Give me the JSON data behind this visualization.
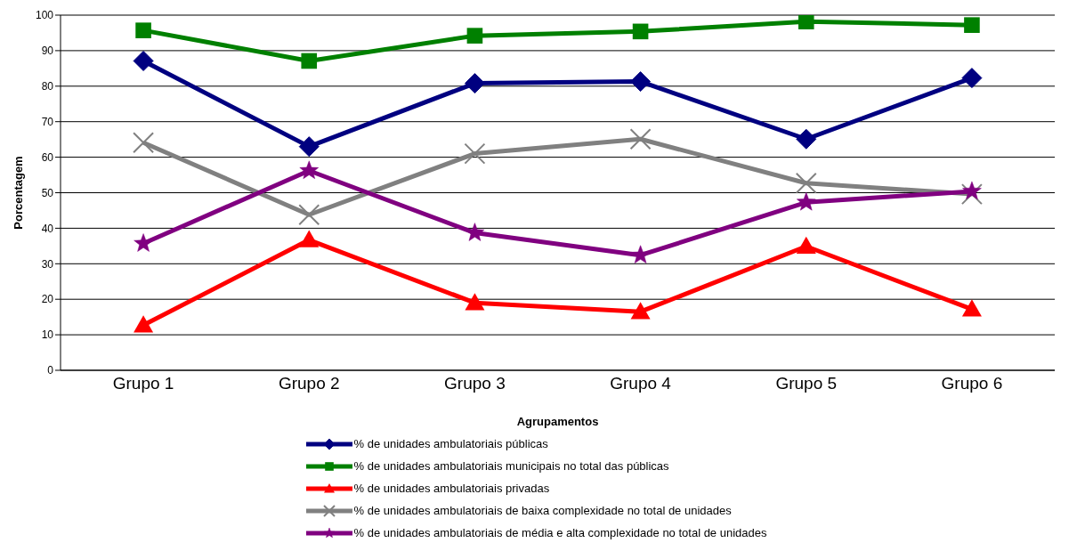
{
  "chart_data": {
    "type": "line",
    "xlabel": "Agrupamentos",
    "ylabel": "Porcentagem",
    "categories": [
      "Grupo 1",
      "Grupo 2",
      "Grupo 3",
      "Grupo 4",
      "Grupo 5",
      "Grupo 6"
    ],
    "ylim": [
      0,
      100
    ],
    "yticks": [
      0,
      10,
      20,
      30,
      40,
      50,
      60,
      70,
      80,
      90,
      100
    ],
    "grid": "y",
    "legend": "bottom",
    "series": [
      {
        "name": "% de unidades ambulatoriais públicas",
        "color": "#000080",
        "marker": "diamond",
        "values": [
          87.1,
          63.0,
          80.8,
          81.3,
          65.1,
          82.3
        ]
      },
      {
        "name": "% de unidades ambulatoriais municipais no total das públicas",
        "color": "#008000",
        "marker": "square",
        "values": [
          95.7,
          87.1,
          94.2,
          95.4,
          98.2,
          97.2
        ]
      },
      {
        "name": "% de unidades ambulatoriais privadas",
        "color": "#ff0000",
        "marker": "triangle",
        "values": [
          12.7,
          36.7,
          19.0,
          16.5,
          34.9,
          17.2
        ]
      },
      {
        "name": "% de unidades ambulatoriais de baixa complexidade no total de unidades",
        "color": "#808080",
        "marker": "cross",
        "values": [
          64.1,
          43.8,
          61.0,
          65.1,
          52.7,
          49.6
        ]
      },
      {
        "name": "% de unidades ambulatoriais de média e alta complexidade no total de unidades",
        "color": "#800080",
        "marker": "star",
        "values": [
          35.7,
          56.2,
          38.7,
          32.4,
          47.3,
          50.4
        ]
      }
    ]
  }
}
